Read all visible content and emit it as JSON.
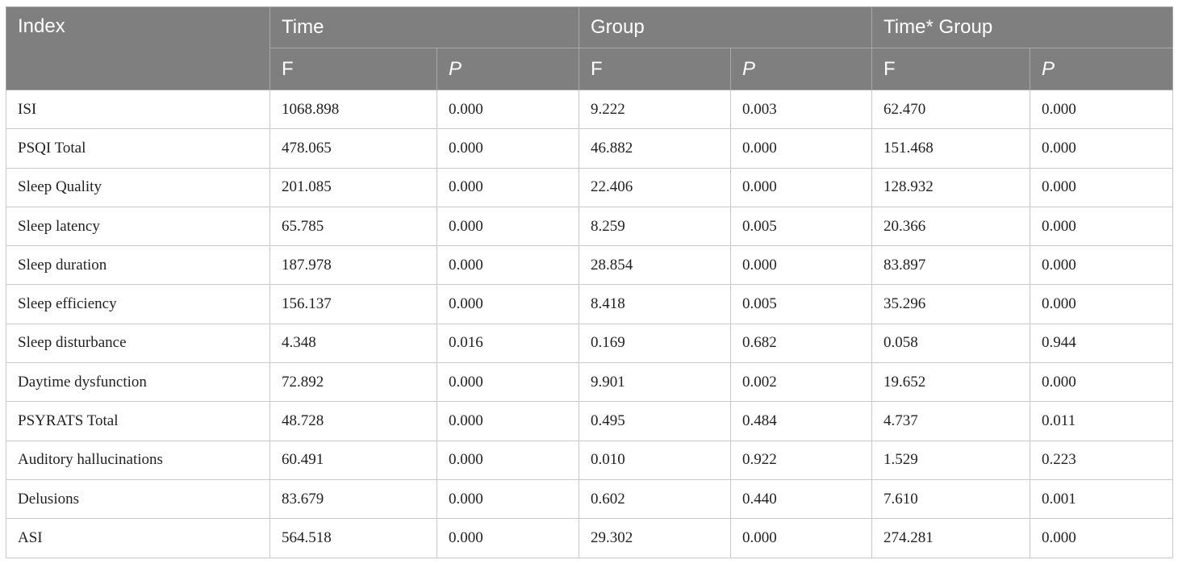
{
  "table": {
    "headers": {
      "index": "Index",
      "groups": [
        "Time",
        "Group",
        "Time* Group"
      ],
      "sub": [
        "F",
        "P",
        "F",
        "P",
        "F",
        "P"
      ]
    },
    "rows": [
      {
        "index": "ISI",
        "values": [
          "1068.898",
          "0.000",
          "9.222",
          "0.003",
          "62.470",
          "0.000"
        ]
      },
      {
        "index": "PSQI Total",
        "values": [
          "478.065",
          "0.000",
          "46.882",
          "0.000",
          "151.468",
          "0.000"
        ]
      },
      {
        "index": "Sleep Quality",
        "values": [
          "201.085",
          "0.000",
          "22.406",
          "0.000",
          "128.932",
          "0.000"
        ]
      },
      {
        "index": "Sleep latency",
        "values": [
          "65.785",
          "0.000",
          "8.259",
          "0.005",
          "20.366",
          "0.000"
        ]
      },
      {
        "index": "Sleep duration",
        "values": [
          "187.978",
          "0.000",
          "28.854",
          "0.000",
          "83.897",
          "0.000"
        ]
      },
      {
        "index": "Sleep efficiency",
        "values": [
          "156.137",
          "0.000",
          "8.418",
          "0.005",
          "35.296",
          "0.000"
        ]
      },
      {
        "index": "Sleep disturbance",
        "values": [
          "4.348",
          "0.016",
          "0.169",
          "0.682",
          "0.058",
          "0.944"
        ]
      },
      {
        "index": "Daytime dysfunction",
        "values": [
          "72.892",
          "0.000",
          "9.901",
          "0.002",
          "19.652",
          "0.000"
        ]
      },
      {
        "index": "PSYRATS Total",
        "values": [
          "48.728",
          "0.000",
          "0.495",
          "0.484",
          "4.737",
          "0.011"
        ]
      },
      {
        "index": "Auditory hallucinations",
        "values": [
          "60.491",
          "0.000",
          "0.010",
          "0.922",
          "1.529",
          "0.223"
        ]
      },
      {
        "index": "Delusions",
        "values": [
          "83.679",
          "0.000",
          "0.602",
          "0.440",
          "7.610",
          "0.001"
        ]
      },
      {
        "index": "ASI",
        "values": [
          "564.518",
          "0.000",
          "29.302",
          "0.000",
          "274.281",
          "0.000"
        ]
      }
    ]
  }
}
